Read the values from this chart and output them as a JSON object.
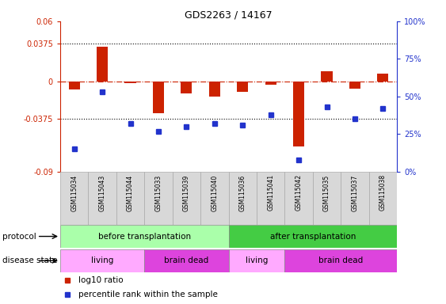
{
  "title": "GDS2263 / 14167",
  "samples": [
    "GSM115034",
    "GSM115043",
    "GSM115044",
    "GSM115033",
    "GSM115039",
    "GSM115040",
    "GSM115036",
    "GSM115041",
    "GSM115042",
    "GSM115035",
    "GSM115037",
    "GSM115038"
  ],
  "log10_ratio": [
    -0.008,
    0.035,
    -0.002,
    -0.032,
    -0.012,
    -0.015,
    -0.01,
    -0.003,
    -0.065,
    0.01,
    -0.007,
    0.008
  ],
  "percentile_rank": [
    15,
    53,
    32,
    27,
    30,
    32,
    31,
    38,
    8,
    43,
    35,
    42
  ],
  "ylim_left": [
    -0.09,
    0.06
  ],
  "ylim_right": [
    0,
    100
  ],
  "yticks_left": [
    -0.09,
    -0.0375,
    0,
    0.0375,
    0.06
  ],
  "yticks_right": [
    0,
    25,
    50,
    75,
    100
  ],
  "ytick_labels_left": [
    "-0.09",
    "-0.0375",
    "0",
    "0.0375",
    "0.06"
  ],
  "ytick_labels_right": [
    "0%",
    "25%",
    "50%",
    "75%",
    "100%"
  ],
  "hlines": [
    -0.0375,
    0.0375
  ],
  "bar_color": "#cc2200",
  "dot_color": "#2233cc",
  "zero_line_color": "#cc2200",
  "protocol_groups": [
    {
      "label": "before transplantation",
      "start": 0,
      "end": 6,
      "color": "#aaffaa"
    },
    {
      "label": "after transplantation",
      "start": 6,
      "end": 12,
      "color": "#44cc44"
    }
  ],
  "disease_groups": [
    {
      "label": "living",
      "start": 0,
      "end": 3,
      "color": "#ffaaff"
    },
    {
      "label": "brain dead",
      "start": 3,
      "end": 6,
      "color": "#dd44dd"
    },
    {
      "label": "living",
      "start": 6,
      "end": 8,
      "color": "#ffaaff"
    },
    {
      "label": "brain dead",
      "start": 8,
      "end": 12,
      "color": "#dd44dd"
    }
  ],
  "legend_items": [
    {
      "label": "log10 ratio",
      "color": "#cc2200"
    },
    {
      "label": "percentile rank within the sample",
      "color": "#2233cc"
    }
  ],
  "bar_width": 0.4,
  "dot_size": 5,
  "sample_box_color": "#d8d8d8",
  "sample_font_size": 5.5,
  "label_font_size": 7.5,
  "row_font_size": 7.5
}
